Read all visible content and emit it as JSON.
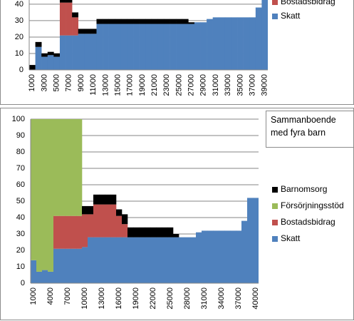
{
  "chart_data": [
    {
      "type": "bar",
      "categories": [
        1000,
        null,
        3000,
        null,
        5000,
        null,
        7000,
        null,
        9000,
        null,
        11000,
        null,
        13000,
        null,
        15000,
        null,
        17000,
        null,
        19000,
        null,
        21000,
        null,
        23000,
        null,
        25000,
        null,
        27000,
        null,
        29000,
        null,
        31000,
        null,
        33000,
        null,
        35000,
        null,
        37000,
        null,
        39000
      ],
      "series": [
        {
          "name": "Skatt",
          "color": "#4f81bd",
          "values": [
            0,
            14,
            8,
            9,
            8,
            21,
            21,
            21,
            22,
            22,
            22,
            28,
            28,
            28,
            28,
            28,
            28,
            28,
            28,
            28,
            28,
            28,
            28,
            28,
            28,
            28,
            28,
            29,
            29,
            31,
            32,
            32,
            32,
            32,
            32,
            32,
            32,
            38,
            45
          ]
        },
        {
          "name": "Bostadsbidrag",
          "color": "#c0504d",
          "values": [
            0,
            0,
            0,
            0,
            0,
            20,
            20,
            11,
            0,
            0,
            0,
            0,
            0,
            0,
            0,
            0,
            0,
            0,
            0,
            0,
            0,
            0,
            0,
            0,
            0,
            0,
            0,
            0,
            0,
            0,
            0,
            0,
            0,
            0,
            0,
            0,
            0,
            0,
            0
          ]
        },
        {
          "color": "#000000",
          "values": [
            3,
            3,
            2,
            2,
            2,
            2,
            2,
            3,
            3,
            3,
            3,
            3,
            3,
            3,
            3,
            3,
            3,
            3,
            3,
            3,
            3,
            3,
            3,
            3,
            3,
            3,
            1,
            0,
            0,
            0,
            0,
            0,
            0,
            0,
            0,
            0,
            0,
            0,
            0
          ]
        }
      ],
      "ylim": [
        0,
        43
      ],
      "yticks": [
        0,
        10,
        20,
        30,
        40
      ],
      "grid": true
    },
    {
      "type": "bar",
      "title": "Sammanboende med fyra barn",
      "categories": [
        1000,
        null,
        null,
        4000,
        null,
        null,
        7000,
        null,
        null,
        10000,
        null,
        null,
        13000,
        null,
        null,
        16000,
        null,
        null,
        19000,
        null,
        null,
        22000,
        null,
        null,
        25000,
        null,
        null,
        28000,
        null,
        null,
        31000,
        null,
        null,
        34000,
        null,
        null,
        37000,
        null,
        null,
        40000
      ],
      "series": [
        {
          "name": "Skatt",
          "color": "#4f81bd",
          "values": [
            14,
            7,
            8,
            7,
            21,
            21,
            21,
            21,
            21,
            22,
            28,
            28,
            28,
            28,
            28,
            28,
            28,
            28,
            28,
            28,
            28,
            28,
            28,
            28,
            28,
            28,
            28,
            28,
            28,
            31,
            32,
            32,
            32,
            32,
            32,
            32,
            32,
            38,
            52,
            52
          ]
        },
        {
          "name": "Bostadsbidrag",
          "color": "#c0504d",
          "values": [
            0,
            0,
            0,
            0,
            20,
            20,
            20,
            20,
            20,
            20,
            14,
            20,
            20,
            20,
            20,
            13,
            8,
            0,
            0,
            0,
            0,
            0,
            0,
            0,
            0,
            0,
            0,
            0,
            0,
            0,
            0,
            0,
            0,
            0,
            0,
            0,
            0,
            0,
            0,
            0
          ]
        },
        {
          "name": "Försörjningsstöd",
          "color": "#9bbb59",
          "values": [
            86,
            93,
            92,
            93,
            59,
            59,
            59,
            59,
            59,
            0,
            0,
            0,
            0,
            0,
            0,
            0,
            0,
            0,
            0,
            0,
            0,
            0,
            0,
            0,
            0,
            0,
            0,
            0,
            0,
            0,
            0,
            0,
            0,
            0,
            0,
            0,
            0,
            0,
            0,
            0
          ]
        },
        {
          "name": "Barnomsorg",
          "color": "#000000",
          "values": [
            0,
            0,
            0,
            0,
            0,
            0,
            0,
            0,
            0,
            5,
            5,
            6,
            6,
            6,
            6,
            4,
            6,
            6,
            6,
            6,
            6,
            6,
            6,
            6,
            6,
            2,
            0,
            0,
            0,
            0,
            0,
            0,
            0,
            0,
            0,
            0,
            0,
            0,
            0,
            0
          ]
        }
      ],
      "ylim": [
        0,
        100
      ],
      "yticks": [
        0,
        10,
        20,
        30,
        40,
        50,
        60,
        70,
        80,
        90,
        100
      ],
      "grid": true
    }
  ]
}
